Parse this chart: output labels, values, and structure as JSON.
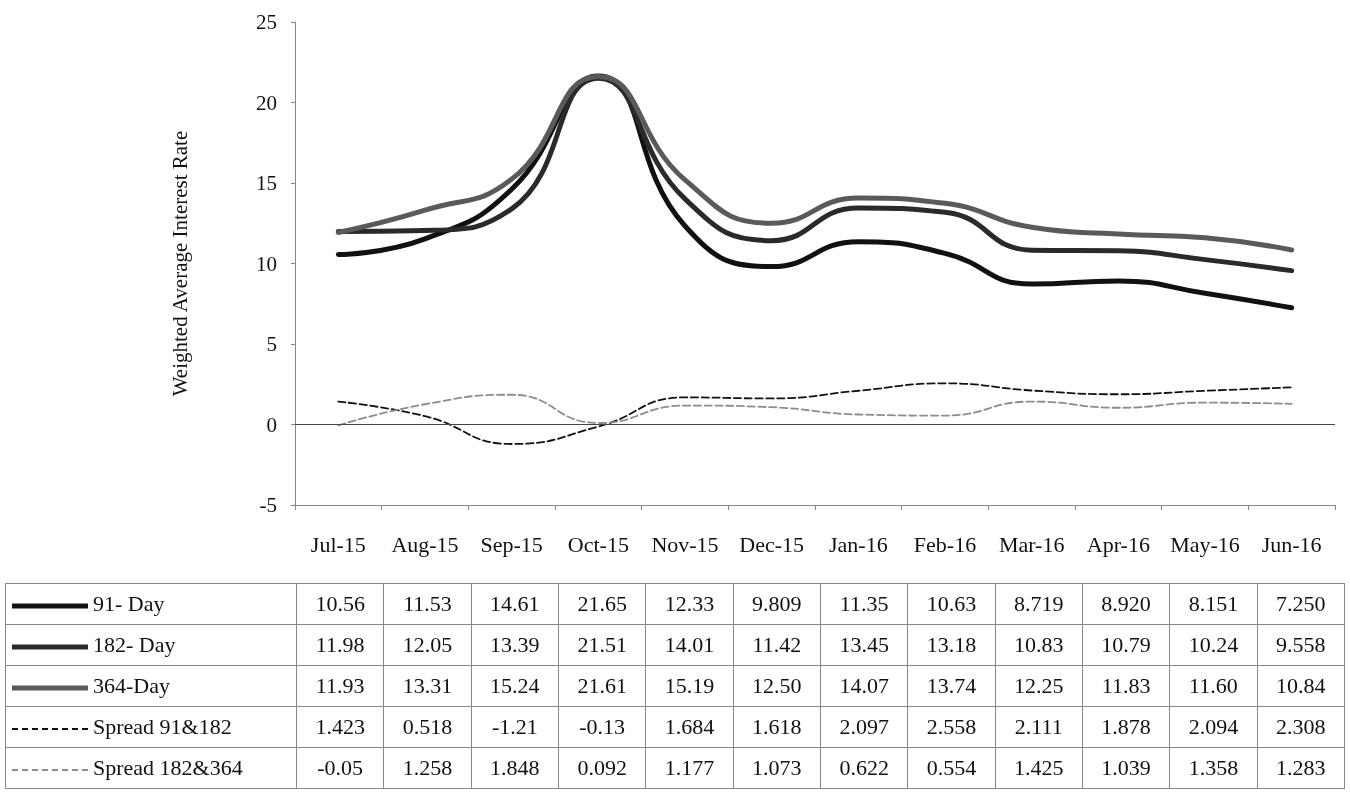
{
  "chart_data": {
    "type": "line",
    "ylabel": "Weighted Average Interest Rate",
    "categories": [
      "Jul-15",
      "Aug-15",
      "Sep-15",
      "Oct-15",
      "Nov-15",
      "Dec-15",
      "Jan-16",
      "Feb-16",
      "Mar-16",
      "Apr-16",
      "May-16",
      "Jun-16"
    ],
    "series": [
      {
        "name": "91- Day",
        "color": "#111111",
        "line_style": "solid",
        "values": [
          10.56,
          11.53,
          14.61,
          21.65,
          12.33,
          9.809,
          11.35,
          10.63,
          8.719,
          8.92,
          8.151,
          7.25
        ],
        "value_labels": [
          "10.56",
          "11.53",
          "14.61",
          "21.65",
          "12.33",
          "9.809",
          "11.35",
          "10.63",
          "8.719",
          "8.920",
          "8.151",
          "7.250"
        ]
      },
      {
        "name": "182- Day",
        "color": "#2a2a2a",
        "line_style": "solid",
        "values": [
          11.98,
          12.05,
          13.39,
          21.51,
          14.01,
          11.42,
          13.45,
          13.18,
          10.83,
          10.79,
          10.24,
          9.558
        ],
        "value_labels": [
          "11.98",
          "12.05",
          "13.39",
          "21.51",
          "14.01",
          "11.42",
          "13.45",
          "13.18",
          "10.83",
          "10.79",
          "10.24",
          "9.558"
        ]
      },
      {
        "name": "364-Day",
        "color": "#5a5a5a",
        "line_style": "solid",
        "values": [
          11.93,
          13.31,
          15.24,
          21.61,
          15.19,
          12.5,
          14.07,
          13.74,
          12.25,
          11.83,
          11.6,
          10.84
        ],
        "value_labels": [
          "11.93",
          "13.31",
          "15.24",
          "21.61",
          "15.19",
          "12.50",
          "14.07",
          "13.74",
          "12.25",
          "11.83",
          "11.60",
          "10.84"
        ]
      },
      {
        "name": "Spread 91&182",
        "color": "#111111",
        "line_style": "dashed",
        "values": [
          1.423,
          0.518,
          -1.21,
          -0.13,
          1.684,
          1.618,
          2.097,
          2.558,
          2.111,
          1.878,
          2.094,
          2.308
        ],
        "value_labels": [
          "1.423",
          "0.518",
          "-1.21",
          "-0.13",
          "1.684",
          "1.618",
          "2.097",
          "2.558",
          "2.111",
          "1.878",
          "2.094",
          "2.308"
        ]
      },
      {
        "name": "Spread 182&364",
        "color": "#8c8c8c",
        "line_style": "dashed",
        "values": [
          -0.05,
          1.258,
          1.848,
          0.092,
          1.177,
          1.073,
          0.622,
          0.554,
          1.425,
          1.039,
          1.358,
          1.283
        ],
        "value_labels": [
          "-0.05",
          "1.258",
          "1.848",
          "0.092",
          "1.177",
          "1.073",
          "0.622",
          "0.554",
          "1.425",
          "1.039",
          "1.358",
          "1.283"
        ]
      }
    ],
    "ylim": [
      -5,
      25
    ],
    "yticks": [
      -5,
      0,
      5,
      10,
      15,
      20,
      25
    ],
    "grid": false,
    "legend": "bottom",
    "marker": "none",
    "ref_lines": [
      {
        "axis": "y",
        "value": 0,
        "color": "#444444"
      }
    ]
  }
}
